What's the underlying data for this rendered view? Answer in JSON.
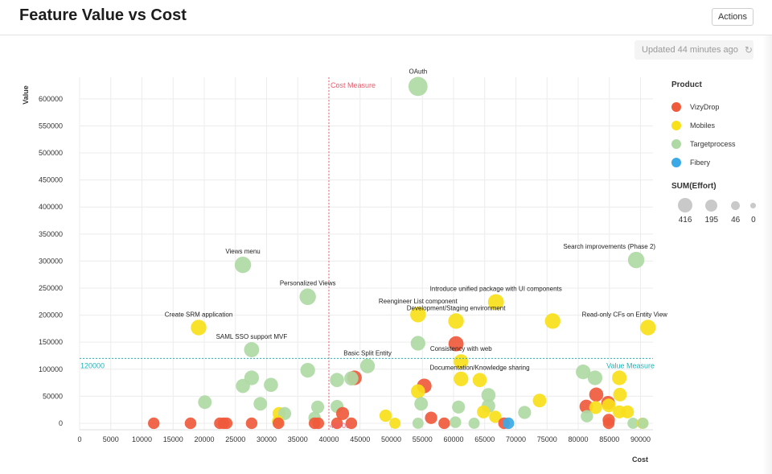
{
  "header": {
    "title": "Feature Value vs Cost",
    "actions_label": "Actions"
  },
  "status": {
    "updated_text": "Updated 44 minutes ago",
    "refresh_icon": "refresh-icon"
  },
  "colors": {
    "VizyDrop": "#f05a3c",
    "Mobiles": "#f8e01a",
    "Targetprocess": "#afd9a4",
    "Fibery": "#3ba9e6",
    "cost_line": "#ec5b6d",
    "value_line": "#22b3b8"
  },
  "chart_data": {
    "type": "scatter",
    "title": "Feature Value vs Cost",
    "xlabel": "Cost",
    "ylabel": "Value",
    "xlim": [
      0,
      92000
    ],
    "ylim": [
      -12000,
      640000
    ],
    "x_ticks": [
      0,
      5000,
      10000,
      15000,
      20000,
      25000,
      30000,
      35000,
      40000,
      45000,
      50000,
      55000,
      60000,
      65000,
      70000,
      75000,
      80000,
      85000,
      90000
    ],
    "y_ticks": [
      0,
      50000,
      100000,
      150000,
      200000,
      250000,
      300000,
      350000,
      400000,
      450000,
      500000,
      550000,
      600000
    ],
    "grid": true,
    "legend_position": "right",
    "color_legend": {
      "title": "Product",
      "items": [
        "VizyDrop",
        "Mobiles",
        "Targetprocess",
        "Fibery"
      ]
    },
    "size_legend": {
      "title": "SUM(Effort)",
      "values": [
        416,
        195,
        46,
        0
      ]
    },
    "reference_lines": [
      {
        "axis": "x",
        "value": 40000,
        "label": "Cost Measure",
        "value_label": "40000"
      },
      {
        "axis": "y",
        "value": 120000,
        "label": "Value Measure",
        "value_label": "120000"
      }
    ],
    "points": [
      {
        "x": 54300,
        "y": 623000,
        "series": "Targetprocess",
        "size": 195,
        "label": "OAuth"
      },
      {
        "x": 26200,
        "y": 293000,
        "series": "Targetprocess",
        "size": 120,
        "label": "Views menu"
      },
      {
        "x": 36600,
        "y": 234000,
        "series": "Targetprocess",
        "size": 120,
        "label": "Personalized Views"
      },
      {
        "x": 89300,
        "y": 302000,
        "series": "Targetprocess",
        "size": 120,
        "label": "Search improvements (Phase 2)"
      },
      {
        "x": 66800,
        "y": 224000,
        "series": "Mobiles",
        "size": 110,
        "label": "Introduce unified package with UI components"
      },
      {
        "x": 54300,
        "y": 201000,
        "series": "Mobiles",
        "size": 100,
        "label": "Reengineer List component"
      },
      {
        "x": 60400,
        "y": 189000,
        "series": "Mobiles",
        "size": 100,
        "label": "Development/Staging environment"
      },
      {
        "x": 75900,
        "y": 189000,
        "series": "Mobiles",
        "size": 100,
        "label": ""
      },
      {
        "x": 19100,
        "y": 177000,
        "series": "Mobiles",
        "size": 100,
        "label": "Create SRM application"
      },
      {
        "x": 91200,
        "y": 177000,
        "series": "Mobiles",
        "size": 100,
        "label": "Read-only CFs on Entity View"
      },
      {
        "x": 54300,
        "y": 148000,
        "series": "Targetprocess",
        "size": 80,
        "label": ""
      },
      {
        "x": 60400,
        "y": 147000,
        "series": "VizyDrop",
        "size": 90,
        "label": ""
      },
      {
        "x": 27600,
        "y": 136000,
        "series": "Targetprocess",
        "size": 90,
        "label": "SAML SSO support MVF"
      },
      {
        "x": 61200,
        "y": 114000,
        "series": "Mobiles",
        "size": 80,
        "label": "Consistency with web"
      },
      {
        "x": 46200,
        "y": 106000,
        "series": "Targetprocess",
        "size": 80,
        "label": "Basic Split Entity"
      },
      {
        "x": 36600,
        "y": 98000,
        "series": "Targetprocess",
        "size": 80,
        "label": ""
      },
      {
        "x": 80800,
        "y": 95000,
        "series": "Targetprocess",
        "size": 80,
        "label": ""
      },
      {
        "x": 27600,
        "y": 84000,
        "series": "Targetprocess",
        "size": 80,
        "label": ""
      },
      {
        "x": 41300,
        "y": 80000,
        "series": "Targetprocess",
        "size": 70,
        "label": ""
      },
      {
        "x": 43600,
        "y": 83000,
        "series": "Targetprocess",
        "size": 70,
        "label": ""
      },
      {
        "x": 44100,
        "y": 84000,
        "series": "VizyDrop",
        "size": 80,
        "label": ""
      },
      {
        "x": 61200,
        "y": 82000,
        "series": "Mobiles",
        "size": 80,
        "label": ""
      },
      {
        "x": 64200,
        "y": 80000,
        "series": "Mobiles",
        "size": 70,
        "label": "Documentation/Knowledge sharing"
      },
      {
        "x": 82700,
        "y": 84000,
        "series": "Targetprocess",
        "size": 80,
        "label": ""
      },
      {
        "x": 86600,
        "y": 84000,
        "series": "Mobiles",
        "size": 80,
        "label": ""
      },
      {
        "x": 26200,
        "y": 69000,
        "series": "Targetprocess",
        "size": 70,
        "label": ""
      },
      {
        "x": 30700,
        "y": 71000,
        "series": "Targetprocess",
        "size": 70,
        "label": ""
      },
      {
        "x": 55300,
        "y": 69000,
        "series": "VizyDrop",
        "size": 80,
        "label": ""
      },
      {
        "x": 54300,
        "y": 59000,
        "series": "Mobiles",
        "size": 70,
        "label": ""
      },
      {
        "x": 65600,
        "y": 52000,
        "series": "Targetprocess",
        "size": 70,
        "label": ""
      },
      {
        "x": 82900,
        "y": 53000,
        "series": "VizyDrop",
        "size": 70,
        "label": ""
      },
      {
        "x": 86700,
        "y": 53000,
        "series": "Mobiles",
        "size": 60,
        "label": ""
      },
      {
        "x": 20100,
        "y": 39000,
        "series": "Targetprocess",
        "size": 60,
        "label": ""
      },
      {
        "x": 29000,
        "y": 36000,
        "series": "Targetprocess",
        "size": 60,
        "label": ""
      },
      {
        "x": 54800,
        "y": 36000,
        "series": "Targetprocess",
        "size": 60,
        "label": ""
      },
      {
        "x": 73800,
        "y": 42000,
        "series": "Mobiles",
        "size": 60,
        "label": ""
      },
      {
        "x": 84800,
        "y": 38000,
        "series": "VizyDrop",
        "size": 60,
        "label": ""
      },
      {
        "x": 81300,
        "y": 31000,
        "series": "VizyDrop",
        "size": 60,
        "label": ""
      },
      {
        "x": 84900,
        "y": 33000,
        "series": "Mobiles",
        "size": 60,
        "label": ""
      },
      {
        "x": 82800,
        "y": 29000,
        "series": "Mobiles",
        "size": 50,
        "label": ""
      },
      {
        "x": 38200,
        "y": 30000,
        "series": "Targetprocess",
        "size": 50,
        "label": ""
      },
      {
        "x": 41300,
        "y": 31000,
        "series": "Targetprocess",
        "size": 50,
        "label": ""
      },
      {
        "x": 60800,
        "y": 30000,
        "series": "Targetprocess",
        "size": 50,
        "label": ""
      },
      {
        "x": 65600,
        "y": 32000,
        "series": "Targetprocess",
        "size": 60,
        "label": ""
      },
      {
        "x": 71400,
        "y": 20000,
        "series": "Targetprocess",
        "size": 50,
        "label": ""
      },
      {
        "x": 64800,
        "y": 21000,
        "series": "Mobiles",
        "size": 50,
        "label": ""
      },
      {
        "x": 86600,
        "y": 21000,
        "series": "Mobiles",
        "size": 50,
        "label": ""
      },
      {
        "x": 87900,
        "y": 21000,
        "series": "Mobiles",
        "size": 50,
        "label": ""
      },
      {
        "x": 32000,
        "y": 18000,
        "series": "Mobiles",
        "size": 50,
        "label": ""
      },
      {
        "x": 32900,
        "y": 18000,
        "series": "Targetprocess",
        "size": 50,
        "label": ""
      },
      {
        "x": 42200,
        "y": 18000,
        "series": "VizyDrop",
        "size": 50,
        "label": ""
      },
      {
        "x": 49100,
        "y": 14000,
        "series": "Mobiles",
        "size": 40,
        "label": ""
      },
      {
        "x": 66700,
        "y": 12000,
        "series": "Mobiles",
        "size": 40,
        "label": ""
      },
      {
        "x": 81400,
        "y": 13000,
        "series": "Targetprocess",
        "size": 40,
        "label": ""
      },
      {
        "x": 37700,
        "y": 10000,
        "series": "Targetprocess",
        "size": 40,
        "label": ""
      },
      {
        "x": 56400,
        "y": 10000,
        "series": "VizyDrop",
        "size": 40,
        "label": ""
      },
      {
        "x": 84900,
        "y": 6000,
        "series": "VizyDrop",
        "size": 40,
        "label": ""
      },
      {
        "x": 31800,
        "y": 4000,
        "series": "Mobiles",
        "size": 30,
        "label": ""
      },
      {
        "x": 11900,
        "y": 0,
        "series": "VizyDrop",
        "size": 30,
        "label": ""
      },
      {
        "x": 17800,
        "y": 0,
        "series": "VizyDrop",
        "size": 30,
        "label": ""
      },
      {
        "x": 22500,
        "y": 0,
        "series": "VizyDrop",
        "size": 30,
        "label": ""
      },
      {
        "x": 23100,
        "y": 0,
        "series": "VizyDrop",
        "size": 30,
        "label": ""
      },
      {
        "x": 23600,
        "y": 0,
        "series": "VizyDrop",
        "size": 30,
        "label": ""
      },
      {
        "x": 27600,
        "y": 0,
        "series": "VizyDrop",
        "size": 30,
        "label": ""
      },
      {
        "x": 31900,
        "y": 0,
        "series": "VizyDrop",
        "size": 30,
        "label": ""
      },
      {
        "x": 37700,
        "y": 0,
        "series": "VizyDrop",
        "size": 30,
        "label": ""
      },
      {
        "x": 38300,
        "y": 0,
        "series": "VizyDrop",
        "size": 30,
        "label": ""
      },
      {
        "x": 41300,
        "y": 0,
        "series": "VizyDrop",
        "size": 30,
        "label": ""
      },
      {
        "x": 43600,
        "y": 0,
        "series": "VizyDrop",
        "size": 30,
        "label": ""
      },
      {
        "x": 50600,
        "y": 0,
        "series": "Mobiles",
        "size": 25,
        "label": ""
      },
      {
        "x": 54300,
        "y": 0,
        "series": "Targetprocess",
        "size": 25,
        "label": ""
      },
      {
        "x": 58500,
        "y": 0,
        "series": "VizyDrop",
        "size": 30,
        "label": ""
      },
      {
        "x": 60300,
        "y": 2000,
        "series": "Targetprocess",
        "size": 30,
        "label": ""
      },
      {
        "x": 63300,
        "y": 0,
        "series": "Targetprocess",
        "size": 25,
        "label": ""
      },
      {
        "x": 68100,
        "y": 0,
        "series": "VizyDrop",
        "size": 30,
        "label": ""
      },
      {
        "x": 68800,
        "y": 0,
        "series": "Fibery",
        "size": 30,
        "label": ""
      },
      {
        "x": 84900,
        "y": 0,
        "series": "VizyDrop",
        "size": 30,
        "label": ""
      },
      {
        "x": 88800,
        "y": 0,
        "series": "Targetprocess",
        "size": 25,
        "label": ""
      },
      {
        "x": 90300,
        "y": 0,
        "series": "Mobiles",
        "size": 25,
        "label": ""
      },
      {
        "x": 90400,
        "y": 0,
        "series": "Targetprocess",
        "size": 25,
        "label": ""
      }
    ]
  }
}
